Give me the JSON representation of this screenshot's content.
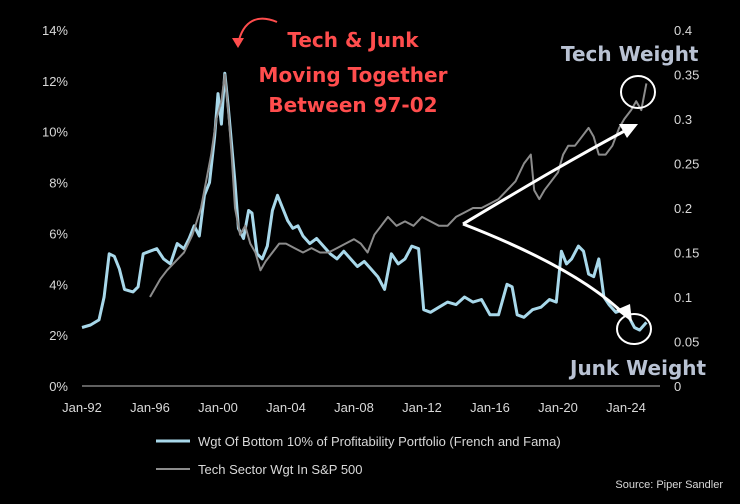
{
  "chart_data": {
    "type": "line",
    "x_ticks": [
      "Jan-92",
      "Jan-96",
      "Jan-00",
      "Jan-04",
      "Jan-08",
      "Jan-12",
      "Jan-16",
      "Jan-20",
      "Jan-24"
    ],
    "y_left": {
      "ticks": [
        "0%",
        "2%",
        "4%",
        "6%",
        "8%",
        "10%",
        "12%",
        "14%"
      ],
      "range": [
        0,
        14
      ]
    },
    "y_right": {
      "ticks": [
        "0",
        "0.05",
        "0.1",
        "0.15",
        "0.2",
        "0.25",
        "0.3",
        "0.35",
        "0.4"
      ],
      "range": [
        0,
        0.4
      ]
    },
    "series": [
      {
        "name": "Wgt Of Bottom 10% of Profitability Portfolio (French and Fama)",
        "axis": "left",
        "color": "#a8d8ea",
        "points": [
          [
            1992.0,
            2.3
          ],
          [
            1992.5,
            2.4
          ],
          [
            1993.0,
            2.6
          ],
          [
            1993.3,
            3.5
          ],
          [
            1993.6,
            5.2
          ],
          [
            1993.9,
            5.1
          ],
          [
            1994.2,
            4.6
          ],
          [
            1994.5,
            3.8
          ],
          [
            1995.0,
            3.7
          ],
          [
            1995.3,
            3.9
          ],
          [
            1995.6,
            5.2
          ],
          [
            1996.0,
            5.3
          ],
          [
            1996.4,
            5.4
          ],
          [
            1996.8,
            5.0
          ],
          [
            1997.2,
            4.8
          ],
          [
            1997.6,
            5.6
          ],
          [
            1998.0,
            5.4
          ],
          [
            1998.3,
            5.8
          ],
          [
            1998.6,
            6.3
          ],
          [
            1998.9,
            5.9
          ],
          [
            1999.2,
            7.5
          ],
          [
            1999.5,
            8.0
          ],
          [
            1999.8,
            9.8
          ],
          [
            2000.0,
            11.5
          ],
          [
            2000.2,
            10.3
          ],
          [
            2000.4,
            12.3
          ],
          [
            2000.6,
            11.0
          ],
          [
            2000.8,
            9.5
          ],
          [
            2001.0,
            8.0
          ],
          [
            2001.2,
            6.2
          ],
          [
            2001.5,
            5.8
          ],
          [
            2001.8,
            6.9
          ],
          [
            2002.0,
            6.8
          ],
          [
            2002.3,
            5.2
          ],
          [
            2002.6,
            5.0
          ],
          [
            2002.9,
            5.5
          ],
          [
            2003.2,
            6.9
          ],
          [
            2003.5,
            7.5
          ],
          [
            2003.8,
            7.0
          ],
          [
            2004.1,
            6.5
          ],
          [
            2004.4,
            6.2
          ],
          [
            2004.7,
            6.3
          ],
          [
            2005.0,
            5.9
          ],
          [
            2005.4,
            5.6
          ],
          [
            2005.8,
            5.8
          ],
          [
            2006.2,
            5.5
          ],
          [
            2006.6,
            5.2
          ],
          [
            2007.0,
            5.0
          ],
          [
            2007.4,
            5.3
          ],
          [
            2007.8,
            5.0
          ],
          [
            2008.2,
            4.7
          ],
          [
            2008.6,
            4.9
          ],
          [
            2009.0,
            4.6
          ],
          [
            2009.4,
            4.3
          ],
          [
            2009.8,
            3.8
          ],
          [
            2010.2,
            5.2
          ],
          [
            2010.6,
            4.8
          ],
          [
            2011.0,
            5.0
          ],
          [
            2011.4,
            5.5
          ],
          [
            2011.8,
            5.4
          ],
          [
            2012.1,
            3.0
          ],
          [
            2012.5,
            2.9
          ],
          [
            2013.0,
            3.1
          ],
          [
            2013.5,
            3.3
          ],
          [
            2014.0,
            3.2
          ],
          [
            2014.5,
            3.5
          ],
          [
            2015.0,
            3.3
          ],
          [
            2015.5,
            3.4
          ],
          [
            2016.0,
            2.8
          ],
          [
            2016.5,
            2.8
          ],
          [
            2017.0,
            4.0
          ],
          [
            2017.3,
            3.9
          ],
          [
            2017.6,
            2.8
          ],
          [
            2018.0,
            2.7
          ],
          [
            2018.5,
            3.0
          ],
          [
            2019.0,
            3.1
          ],
          [
            2019.5,
            3.4
          ],
          [
            2019.9,
            3.3
          ],
          [
            2020.2,
            5.3
          ],
          [
            2020.5,
            4.8
          ],
          [
            2020.8,
            5.0
          ],
          [
            2021.2,
            5.5
          ],
          [
            2021.5,
            5.3
          ],
          [
            2021.8,
            4.4
          ],
          [
            2022.1,
            4.3
          ],
          [
            2022.4,
            5.0
          ],
          [
            2022.7,
            3.5
          ],
          [
            2023.0,
            3.2
          ],
          [
            2023.4,
            2.9
          ],
          [
            2023.8,
            3.0
          ],
          [
            2024.1,
            2.8
          ],
          [
            2024.5,
            2.3
          ],
          [
            2024.8,
            2.2
          ],
          [
            2025.2,
            2.5
          ]
        ]
      },
      {
        "name": "Tech Sector Wgt In S&P 500",
        "axis": "right",
        "color": "#8c8c8c",
        "points": [
          [
            1996.0,
            0.1
          ],
          [
            1996.3,
            0.11
          ],
          [
            1996.6,
            0.12
          ],
          [
            1997.0,
            0.13
          ],
          [
            1997.5,
            0.14
          ],
          [
            1998.0,
            0.15
          ],
          [
            1998.5,
            0.17
          ],
          [
            1999.0,
            0.2
          ],
          [
            1999.3,
            0.23
          ],
          [
            1999.6,
            0.26
          ],
          [
            1999.9,
            0.3
          ],
          [
            2000.2,
            0.32
          ],
          [
            2000.4,
            0.35
          ],
          [
            2000.6,
            0.31
          ],
          [
            2000.8,
            0.26
          ],
          [
            2001.0,
            0.2
          ],
          [
            2001.3,
            0.17
          ],
          [
            2001.6,
            0.18
          ],
          [
            2001.9,
            0.16
          ],
          [
            2002.2,
            0.15
          ],
          [
            2002.5,
            0.13
          ],
          [
            2002.8,
            0.14
          ],
          [
            2003.2,
            0.15
          ],
          [
            2003.6,
            0.16
          ],
          [
            2004.0,
            0.16
          ],
          [
            2004.5,
            0.155
          ],
          [
            2005.0,
            0.15
          ],
          [
            2005.5,
            0.155
          ],
          [
            2006.0,
            0.15
          ],
          [
            2006.5,
            0.15
          ],
          [
            2007.0,
            0.155
          ],
          [
            2007.5,
            0.16
          ],
          [
            2008.0,
            0.165
          ],
          [
            2008.4,
            0.16
          ],
          [
            2008.8,
            0.15
          ],
          [
            2009.2,
            0.17
          ],
          [
            2009.6,
            0.18
          ],
          [
            2010.0,
            0.19
          ],
          [
            2010.5,
            0.18
          ],
          [
            2011.0,
            0.185
          ],
          [
            2011.5,
            0.18
          ],
          [
            2012.0,
            0.19
          ],
          [
            2012.5,
            0.185
          ],
          [
            2013.0,
            0.18
          ],
          [
            2013.5,
            0.18
          ],
          [
            2014.0,
            0.19
          ],
          [
            2014.5,
            0.195
          ],
          [
            2015.0,
            0.2
          ],
          [
            2015.5,
            0.2
          ],
          [
            2016.0,
            0.205
          ],
          [
            2016.5,
            0.21
          ],
          [
            2017.0,
            0.22
          ],
          [
            2017.5,
            0.23
          ],
          [
            2018.0,
            0.25
          ],
          [
            2018.4,
            0.26
          ],
          [
            2018.6,
            0.22
          ],
          [
            2018.9,
            0.21
          ],
          [
            2019.2,
            0.22
          ],
          [
            2019.6,
            0.23
          ],
          [
            2020.0,
            0.24
          ],
          [
            2020.3,
            0.26
          ],
          [
            2020.6,
            0.27
          ],
          [
            2021.0,
            0.27
          ],
          [
            2021.4,
            0.28
          ],
          [
            2021.8,
            0.29
          ],
          [
            2022.1,
            0.28
          ],
          [
            2022.4,
            0.26
          ],
          [
            2022.8,
            0.26
          ],
          [
            2023.2,
            0.27
          ],
          [
            2023.6,
            0.29
          ],
          [
            2023.9,
            0.3
          ],
          [
            2024.3,
            0.31
          ],
          [
            2024.6,
            0.32
          ],
          [
            2024.9,
            0.31
          ],
          [
            2025.2,
            0.34
          ]
        ]
      }
    ],
    "legend_position": "bottom-left",
    "grid": false
  },
  "annotations": {
    "red": [
      "Tech & Junk",
      "Moving Together",
      "Between 97-02"
    ],
    "tech": "Tech Weight",
    "junk": "Junk Weight"
  },
  "source": "Source: Piper Sandler",
  "colors": {
    "background": "#000000",
    "axis": "#d9d9d9",
    "arrow_red": "#ff4d4d",
    "arrow_white": "#ffffff"
  }
}
